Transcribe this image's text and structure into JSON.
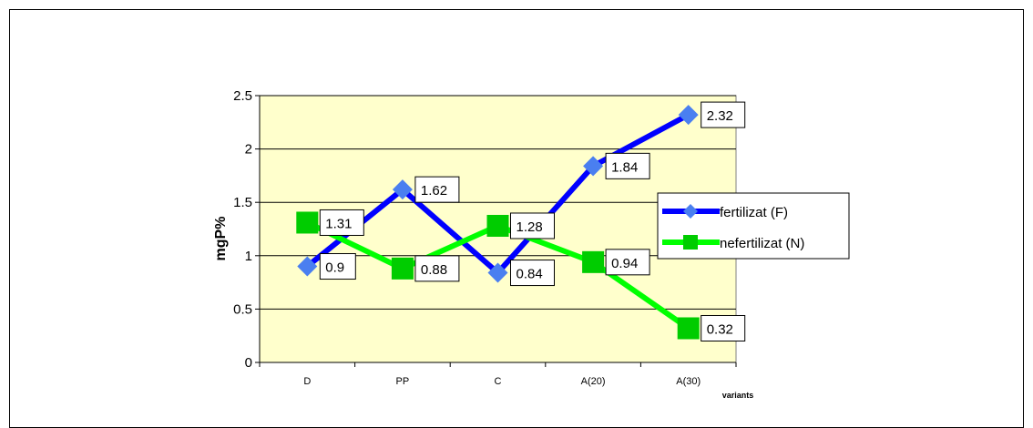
{
  "chart_data": {
    "type": "line",
    "categories": [
      "D",
      "PP",
      "C",
      "A(20)",
      "A(30)"
    ],
    "series": [
      {
        "name": "fertilizat (F)",
        "values": [
          0.9,
          1.62,
          0.84,
          1.84,
          2.32
        ],
        "labels": [
          "0.9",
          "1.62",
          "0.84",
          "1.84",
          "2.32"
        ],
        "color": "#0000ff",
        "marker": "diamond",
        "marker_color": "#4a7ff0"
      },
      {
        "name": "nefertilizat (N)",
        "values": [
          1.31,
          0.88,
          1.28,
          0.94,
          0.32
        ],
        "labels": [
          "1.31",
          "0.88",
          "1.28",
          "0.94",
          "0.32"
        ],
        "color": "#00ff00",
        "marker": "square",
        "marker_color": "#00cc00"
      }
    ],
    "ylim": [
      0,
      2.5
    ],
    "yticks": [
      "0",
      "0.5",
      "1",
      "1.5",
      "2",
      "2.5"
    ],
    "ylabel": "mgP%",
    "xlabel": "variants",
    "grid": true,
    "legend_position": "right",
    "plot_background": "#ffffcc"
  }
}
